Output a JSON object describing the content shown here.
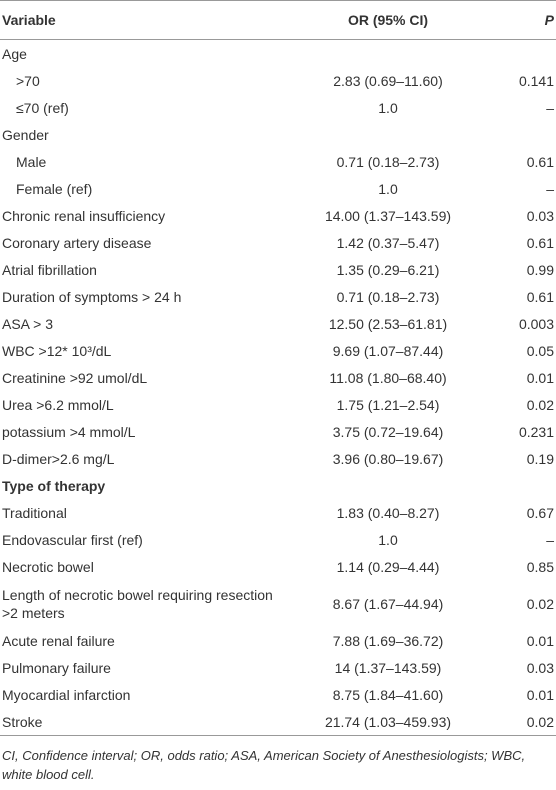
{
  "table": {
    "header": {
      "variable": "Variable",
      "or": "OR (95% CI)",
      "p": "P"
    },
    "rows": [
      {
        "variable": "Age"
      },
      {
        "variable": ">70",
        "or": "2.83 (0.69–11.60)",
        "p": "0.141",
        "indent": true
      },
      {
        "variable": "≤70 (ref)",
        "or": "1.0",
        "p": "–",
        "indent": true
      },
      {
        "variable": "Gender"
      },
      {
        "variable": "Male",
        "or": "0.71 (0.18–2.73)",
        "p": "0.61",
        "indent": true
      },
      {
        "variable": "Female (ref)",
        "or": "1.0",
        "p": "–",
        "indent": true
      },
      {
        "variable": "Chronic renal insufficiency",
        "or": "14.00 (1.37–143.59)",
        "p": "0.03"
      },
      {
        "variable": "Coronary artery disease",
        "or": "1.42 (0.37–5.47)",
        "p": "0.61"
      },
      {
        "variable": "Atrial fibrillation",
        "or": "1.35 (0.29–6.21)",
        "p": "0.99"
      },
      {
        "variable": "Duration of symptoms > 24 h",
        "or": "0.71 (0.18–2.73)",
        "p": "0.61"
      },
      {
        "variable": "ASA > 3",
        "or": "12.50 (2.53–61.81)",
        "p": "0.003"
      },
      {
        "variable": "WBC >12* 10³/dL",
        "or": "9.69 (1.07–87.44)",
        "p": "0.05"
      },
      {
        "variable": "Creatinine >92 umol/dL",
        "or": "11.08 (1.80–68.40)",
        "p": "0.01"
      },
      {
        "variable": "Urea >6.2 mmol/L",
        "or": "1.75 (1.21–2.54)",
        "p": "0.02"
      },
      {
        "variable": "potassium >4 mmol/L",
        "or": "3.75 (0.72–19.64)",
        "p": "0.231"
      },
      {
        "variable": "D-dimer>2.6 mg/L",
        "or": "3.96 (0.80–19.67)",
        "p": "0.19"
      },
      {
        "variable": "Type of therapy",
        "bold": true
      },
      {
        "variable": "Traditional",
        "or": "1.83 (0.40–8.27)",
        "p": "0.67"
      },
      {
        "variable": "Endovascular first (ref)",
        "or": "1.0",
        "p": "–"
      },
      {
        "variable": "Necrotic bowel",
        "or": "1.14 (0.29–4.44)",
        "p": "0.85"
      },
      {
        "variable": "Length of necrotic bowel requiring resection >2 meters",
        "or": "8.67 (1.67–44.94)",
        "p": "0.02"
      },
      {
        "variable": "Acute renal failure",
        "or": "7.88 (1.69–36.72)",
        "p": "0.01"
      },
      {
        "variable": "Pulmonary failure",
        "or": "14 (1.37–143.59)",
        "p": "0.03"
      },
      {
        "variable": "Myocardial infarction",
        "or": "8.75 (1.84–41.60)",
        "p": "0.01"
      },
      {
        "variable": "Stroke",
        "or": "21.74 (1.03–459.93)",
        "p": "0.02"
      }
    ]
  },
  "footnote": "CI, Confidence interval; OR, odds ratio; ASA, American Society of Anesthesiologists; WBC, white blood cell."
}
